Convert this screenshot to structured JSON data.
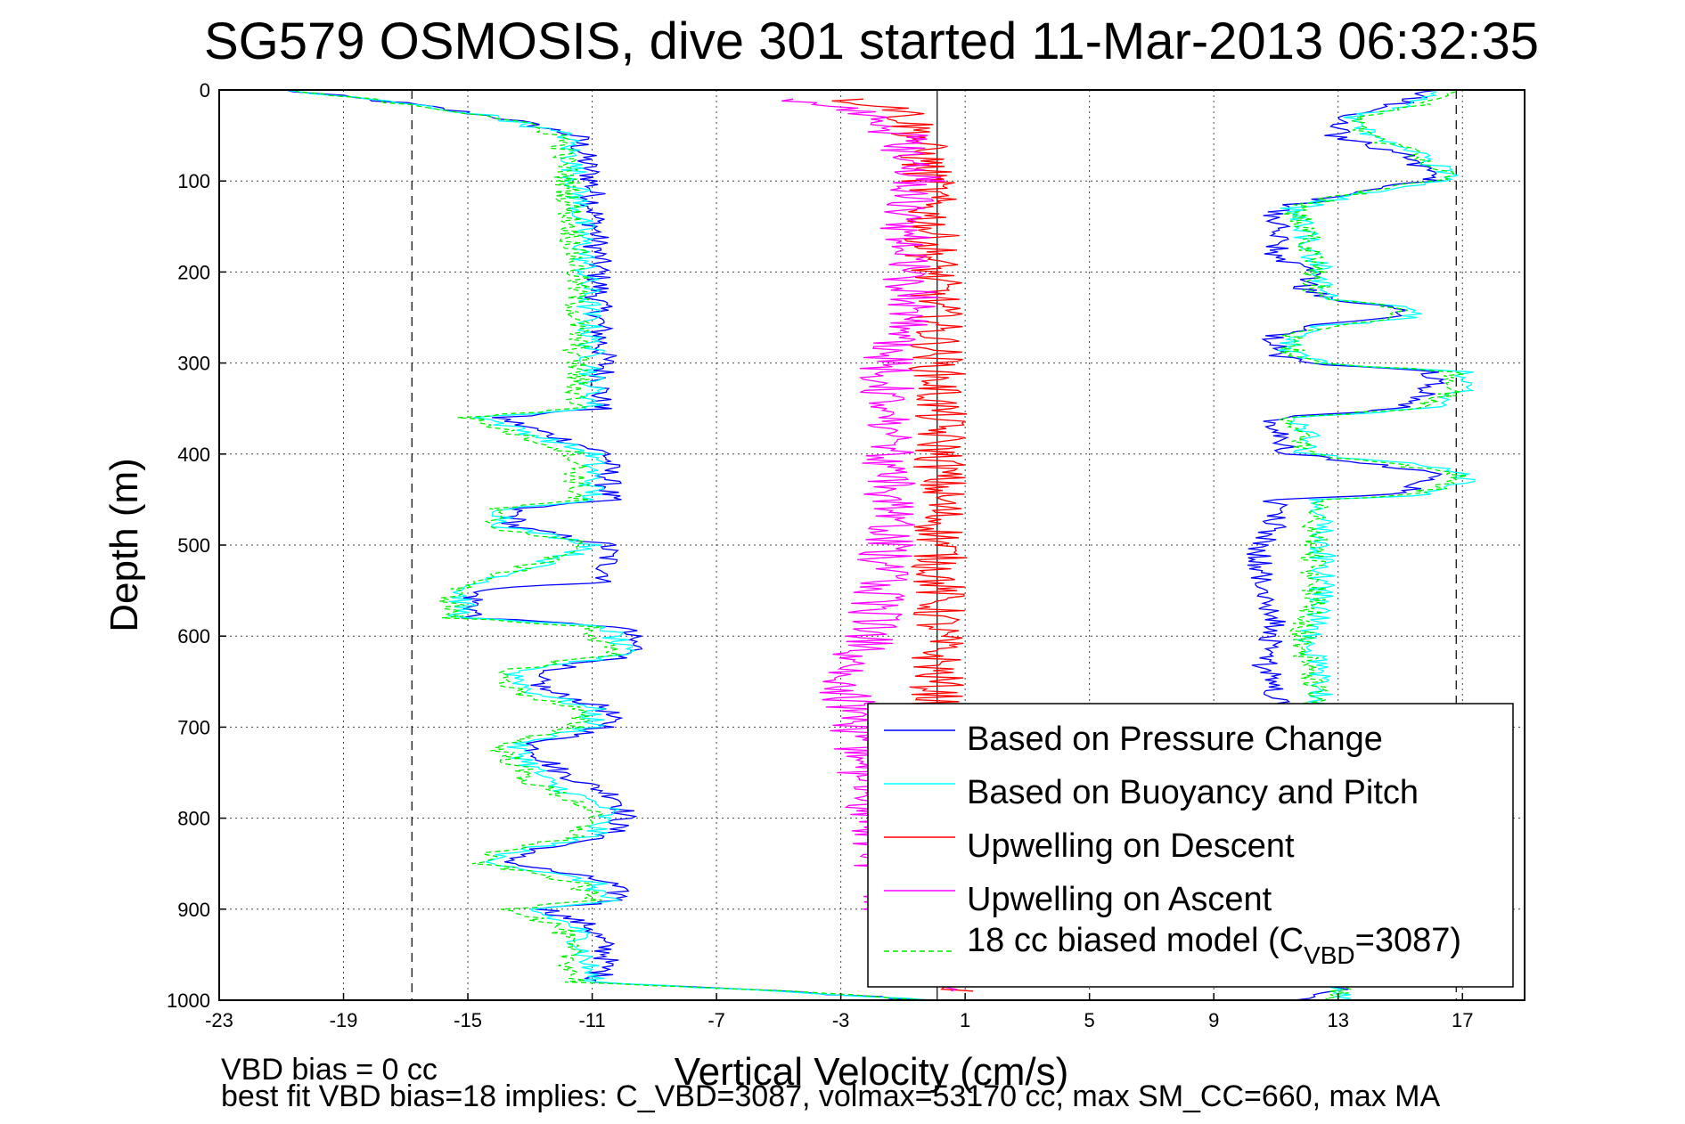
{
  "chart_data": {
    "type": "line",
    "title": "SG579 OSMOSIS, dive 301 started 11-Mar-2013 06:32:35",
    "xlabel": "Vertical Velocity (cm/s)",
    "ylabel": "Depth (m)",
    "xlim": [
      -23,
      19
    ],
    "ylim": [
      0,
      1000
    ],
    "y_reversed": true,
    "grid": true,
    "xticks": [
      -23,
      -19,
      -15,
      -11,
      -7,
      -3,
      1,
      5,
      9,
      13,
      17
    ],
    "xtick_labels": [
      "-23",
      "-19",
      "-15",
      "-11",
      "-7",
      "-3",
      "1",
      "5",
      "9",
      "13",
      "17"
    ],
    "yticks": [
      0,
      100,
      200,
      300,
      400,
      500,
      600,
      700,
      800,
      900,
      1000
    ],
    "ytick_labels": [
      "0",
      "100",
      "200",
      "300",
      "400",
      "500",
      "600",
      "700",
      "800",
      "900",
      "1000"
    ],
    "reference_lines": {
      "dashed_x": [
        -16.8,
        16.8
      ],
      "solid_x": 0.1
    },
    "legend_placement": "bottom-right",
    "legend": {
      "entry1": "Based on Pressure Change",
      "entry2": "Based on Buoyancy and Pitch",
      "entry3": "Upwelling on Descent",
      "entry4": "Upwelling on Ascent",
      "entry5_prefix": "18 cc biased model (C",
      "entry5_sub": "VBD",
      "entry5_suffix": "=3087)"
    },
    "notes": {
      "line1": "VBD bias = 0 cc",
      "line2": "best fit VBD bias=18 implies: C_VBD=3087, volmax=53170 cc, max SM_CC=660, max MA"
    },
    "colors": {
      "pressure": "#0000ff",
      "buoyancy": "#00ffff",
      "descent": "#ff0000",
      "ascent": "#ff00ff",
      "biased": "#00ee00"
    },
    "series": [
      {
        "name": "Based on Pressure Change",
        "key": "pressure",
        "descent_profile": [
          [
            0,
            -21
          ],
          [
            15,
            -17
          ],
          [
            30,
            -14
          ],
          [
            50,
            -11.5
          ],
          [
            100,
            -11
          ],
          [
            200,
            -10.8
          ],
          [
            250,
            -10.8
          ],
          [
            300,
            -10.6
          ],
          [
            350,
            -10.8
          ],
          [
            360,
            -14
          ],
          [
            400,
            -10.5
          ],
          [
            450,
            -10.5
          ],
          [
            460,
            -13.5
          ],
          [
            480,
            -13.5
          ],
          [
            500,
            -10.5
          ],
          [
            540,
            -10.5
          ],
          [
            550,
            -14.8
          ],
          [
            580,
            -14.8
          ],
          [
            590,
            -10
          ],
          [
            620,
            -9.5
          ],
          [
            640,
            -13
          ],
          [
            660,
            -12.5
          ],
          [
            680,
            -10.5
          ],
          [
            700,
            -10.5
          ],
          [
            720,
            -13
          ],
          [
            750,
            -12
          ],
          [
            780,
            -10
          ],
          [
            800,
            -10
          ],
          [
            820,
            -10.5
          ],
          [
            840,
            -13.5
          ],
          [
            850,
            -13.5
          ],
          [
            870,
            -10.5
          ],
          [
            890,
            -10
          ],
          [
            900,
            -12.5
          ],
          [
            920,
            -11
          ],
          [
            950,
            -10.5
          ],
          [
            980,
            -10.8
          ],
          [
            990,
            -5
          ],
          [
            1000,
            0
          ]
        ],
        "ascent_profile": [
          [
            1000,
            12
          ],
          [
            990,
            13
          ],
          [
            970,
            12
          ],
          [
            900,
            12
          ],
          [
            800,
            12
          ],
          [
            700,
            11.5
          ],
          [
            680,
            11
          ],
          [
            660,
            11
          ],
          [
            620,
            10.5
          ],
          [
            600,
            11
          ],
          [
            580,
            11
          ],
          [
            540,
            10.5
          ],
          [
            500,
            10.5
          ],
          [
            480,
            11
          ],
          [
            450,
            11
          ],
          [
            445,
            15
          ],
          [
            430,
            16
          ],
          [
            420,
            16
          ],
          [
            410,
            14
          ],
          [
            400,
            11.5
          ],
          [
            380,
            11
          ],
          [
            360,
            11
          ],
          [
            350,
            15
          ],
          [
            330,
            16
          ],
          [
            310,
            16
          ],
          [
            300,
            12
          ],
          [
            290,
            11
          ],
          [
            270,
            11
          ],
          [
            260,
            12
          ],
          [
            250,
            15
          ],
          [
            240,
            15
          ],
          [
            230,
            13
          ],
          [
            220,
            12
          ],
          [
            200,
            12
          ],
          [
            180,
            11
          ],
          [
            150,
            11
          ],
          [
            130,
            11
          ],
          [
            110,
            14
          ],
          [
            100,
            16
          ],
          [
            90,
            16
          ],
          [
            70,
            15
          ],
          [
            50,
            13
          ],
          [
            30,
            13
          ],
          [
            15,
            15
          ],
          [
            0,
            16
          ]
        ]
      },
      {
        "name": "Based on Buoyancy and Pitch",
        "key": "buoyancy",
        "descent_profile": [
          [
            0,
            -21
          ],
          [
            15,
            -17
          ],
          [
            30,
            -14
          ],
          [
            50,
            -11.8
          ],
          [
            100,
            -11.5
          ],
          [
            200,
            -11.2
          ],
          [
            300,
            -11
          ],
          [
            350,
            -11
          ],
          [
            360,
            -14.5
          ],
          [
            400,
            -11
          ],
          [
            450,
            -11
          ],
          [
            460,
            -13.8
          ],
          [
            480,
            -13.8
          ],
          [
            500,
            -10.8
          ],
          [
            550,
            -15.2
          ],
          [
            580,
            -15.2
          ],
          [
            590,
            -10.5
          ],
          [
            620,
            -10
          ],
          [
            640,
            -13.5
          ],
          [
            660,
            -13
          ],
          [
            680,
            -11
          ],
          [
            700,
            -11
          ],
          [
            720,
            -13.5
          ],
          [
            760,
            -12.5
          ],
          [
            790,
            -10.5
          ],
          [
            820,
            -11
          ],
          [
            840,
            -14
          ],
          [
            850,
            -14
          ],
          [
            870,
            -11
          ],
          [
            890,
            -10.5
          ],
          [
            900,
            -13
          ],
          [
            920,
            -11.5
          ],
          [
            980,
            -11
          ],
          [
            990,
            -5
          ],
          [
            1000,
            0
          ]
        ],
        "ascent_profile": [
          [
            1000,
            13
          ],
          [
            960,
            13
          ],
          [
            900,
            13
          ],
          [
            800,
            13
          ],
          [
            700,
            12.5
          ],
          [
            660,
            12.5
          ],
          [
            600,
            12
          ],
          [
            570,
            12.5
          ],
          [
            500,
            12.5
          ],
          [
            470,
            12.5
          ],
          [
            450,
            12.5
          ],
          [
            445,
            16
          ],
          [
            430,
            17
          ],
          [
            420,
            17
          ],
          [
            410,
            15
          ],
          [
            400,
            12
          ],
          [
            380,
            12
          ],
          [
            360,
            11.5
          ],
          [
            350,
            16
          ],
          [
            330,
            17
          ],
          [
            310,
            17
          ],
          [
            300,
            12.5
          ],
          [
            290,
            11.5
          ],
          [
            270,
            11.5
          ],
          [
            260,
            12.5
          ],
          [
            250,
            15.5
          ],
          [
            240,
            15.5
          ],
          [
            230,
            13
          ],
          [
            220,
            12.5
          ],
          [
            200,
            12.5
          ],
          [
            180,
            12
          ],
          [
            150,
            12
          ],
          [
            130,
            11.5
          ],
          [
            110,
            14.5
          ],
          [
            100,
            16.5
          ],
          [
            90,
            16.5
          ],
          [
            70,
            15.5
          ],
          [
            50,
            14
          ],
          [
            30,
            13.5
          ],
          [
            15,
            15.5
          ],
          [
            0,
            16.5
          ]
        ]
      },
      {
        "name": "Upwelling on Descent",
        "key": "descent",
        "profile": [
          [
            10,
            -3
          ],
          [
            20,
            -1
          ],
          [
            50,
            -0.5
          ],
          [
            100,
            -0.2
          ],
          [
            200,
            0
          ],
          [
            300,
            0.1
          ],
          [
            400,
            0.2
          ],
          [
            500,
            0.2
          ],
          [
            600,
            0.1
          ],
          [
            700,
            0.1
          ],
          [
            800,
            0.2
          ],
          [
            900,
            0.2
          ],
          [
            990,
            1
          ]
        ]
      },
      {
        "name": "Upwelling on Ascent",
        "key": "ascent",
        "profile": [
          [
            990,
            1
          ],
          [
            900,
            -1.5
          ],
          [
            800,
            -2
          ],
          [
            700,
            -2.5
          ],
          [
            650,
            -3
          ],
          [
            600,
            -2
          ],
          [
            500,
            -1.5
          ],
          [
            400,
            -1.5
          ],
          [
            300,
            -1.5
          ],
          [
            250,
            -0.5
          ],
          [
            200,
            -1
          ],
          [
            150,
            -1
          ],
          [
            100,
            -0.5
          ],
          [
            50,
            -1
          ],
          [
            20,
            -3
          ],
          [
            10,
            -5
          ]
        ]
      },
      {
        "name": "18 cc biased model (CVBD=3087)",
        "key": "biased",
        "descent_profile": [
          [
            0,
            -21
          ],
          [
            15,
            -17
          ],
          [
            30,
            -14
          ],
          [
            50,
            -12
          ],
          [
            100,
            -11.8
          ],
          [
            200,
            -11.5
          ],
          [
            300,
            -11.5
          ],
          [
            350,
            -11.5
          ],
          [
            360,
            -15
          ],
          [
            400,
            -11.5
          ],
          [
            450,
            -11.5
          ],
          [
            460,
            -14.2
          ],
          [
            480,
            -14.2
          ],
          [
            500,
            -11
          ],
          [
            550,
            -15.5
          ],
          [
            580,
            -15.5
          ],
          [
            590,
            -11
          ],
          [
            620,
            -10.5
          ],
          [
            640,
            -14
          ],
          [
            660,
            -13.5
          ],
          [
            680,
            -11.5
          ],
          [
            700,
            -11.5
          ],
          [
            720,
            -14
          ],
          [
            760,
            -13
          ],
          [
            790,
            -11
          ],
          [
            820,
            -11.5
          ],
          [
            840,
            -14.5
          ],
          [
            850,
            -14.5
          ],
          [
            870,
            -11.5
          ],
          [
            890,
            -11
          ],
          [
            900,
            -13.5
          ],
          [
            920,
            -12
          ],
          [
            980,
            -11.5
          ],
          [
            990,
            -5
          ],
          [
            1000,
            0
          ]
        ],
        "ascent_profile": [
          [
            1000,
            13
          ],
          [
            960,
            12.8
          ],
          [
            900,
            12.8
          ],
          [
            800,
            12.8
          ],
          [
            700,
            12.3
          ],
          [
            660,
            12.2
          ],
          [
            600,
            11.8
          ],
          [
            570,
            12.2
          ],
          [
            500,
            12.2
          ],
          [
            470,
            12.3
          ],
          [
            450,
            12.3
          ],
          [
            445,
            15.5
          ],
          [
            430,
            16.8
          ],
          [
            420,
            16.8
          ],
          [
            410,
            14.5
          ],
          [
            400,
            12
          ],
          [
            380,
            11.8
          ],
          [
            360,
            11.5
          ],
          [
            350,
            15.5
          ],
          [
            330,
            16.8
          ],
          [
            310,
            16.8
          ],
          [
            300,
            12.5
          ],
          [
            290,
            11.5
          ],
          [
            270,
            11.5
          ],
          [
            260,
            12.5
          ],
          [
            250,
            15
          ],
          [
            240,
            15.2
          ],
          [
            230,
            13
          ],
          [
            220,
            12.3
          ],
          [
            200,
            12.3
          ],
          [
            180,
            12
          ],
          [
            150,
            12
          ],
          [
            130,
            11.5
          ],
          [
            110,
            14
          ],
          [
            100,
            16
          ],
          [
            90,
            16.5
          ],
          [
            70,
            15.5
          ],
          [
            50,
            14
          ],
          [
            30,
            13.5
          ],
          [
            15,
            16
          ],
          [
            0,
            16.5
          ]
        ]
      }
    ]
  }
}
